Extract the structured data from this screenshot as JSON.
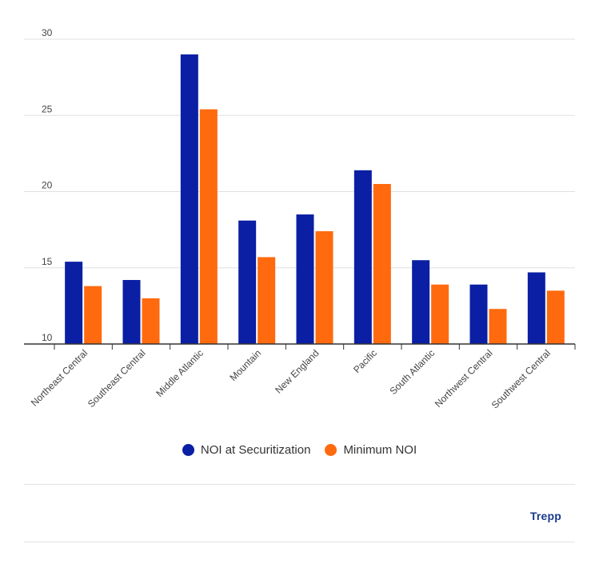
{
  "chart_data": {
    "type": "bar",
    "categories": [
      "Northeast Central",
      "Southeast Central",
      "Middle Atlantic",
      "Mountain",
      "New England",
      "Pacific",
      "South Atlantic",
      "Northwest Central",
      "Southwest Central"
    ],
    "series": [
      {
        "name": "NOI at Securitization",
        "color": "#0a1fa3",
        "values": [
          15.4,
          14.2,
          29.0,
          18.1,
          18.5,
          21.4,
          15.5,
          13.9,
          14.7
        ]
      },
      {
        "name": "Minimum NOI",
        "color": "#ff6a0e",
        "values": [
          13.8,
          13.0,
          25.4,
          15.7,
          17.4,
          20.5,
          13.9,
          12.3,
          13.5
        ]
      }
    ],
    "ylim": [
      10,
      30
    ],
    "yticks": [
      10,
      15,
      20,
      25,
      30
    ],
    "grid": true,
    "legend_position": "bottom-center"
  },
  "footer": {
    "brand": "Trepp"
  }
}
